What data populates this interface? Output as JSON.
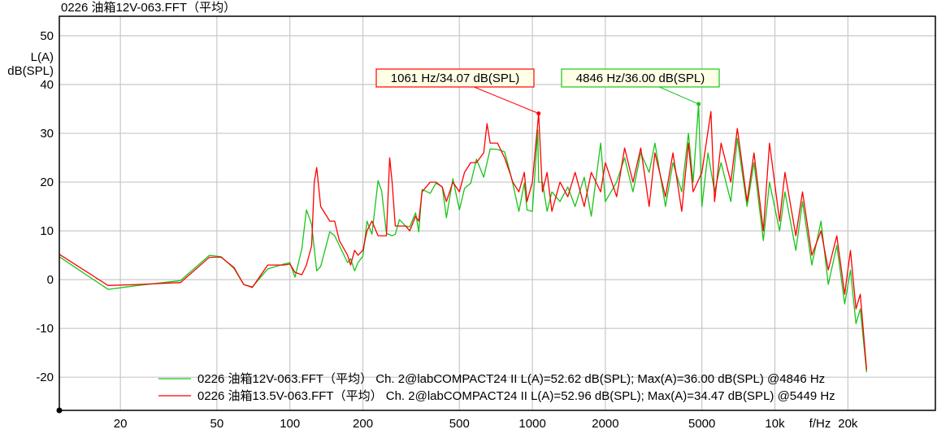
{
  "title": "0226 油箱12V-063.FFT（平均）",
  "chart_data": {
    "type": "line",
    "title": "0226 油箱12V-063.FFT（平均）",
    "ylabel": [
      "L(A)",
      "dB(SPL)"
    ],
    "xlabel": "f/Hz",
    "x_scale": "log",
    "xlim": [
      11.2,
      45900
    ],
    "ylim": [
      -26.8,
      54
    ],
    "grid": true,
    "x_ticks": [
      20,
      50,
      100,
      200,
      500,
      1000,
      2000,
      5000,
      10000,
      20000
    ],
    "x_tick_labels": [
      "20",
      "50",
      "100",
      "200",
      "500",
      "1000",
      "2000",
      "5000",
      "10k",
      "20k"
    ],
    "y_ticks": [
      50,
      40,
      30,
      20,
      10,
      0,
      -10,
      -20
    ],
    "y_tick_labels": [
      "50",
      "40",
      "30",
      "20",
      "10",
      "0",
      "-10",
      "-20"
    ],
    "legend_position": "bottom",
    "series": [
      {
        "name": "0226 油箱12V-063.FFT（平均） Ch. 2@labCOMPACT24 II L(A)=52.62 dB(SPL); Max(A)=36.00 dB(SPL) @4846 Hz",
        "color": "#19c419",
        "points": [
          [
            11.2,
            4.7
          ],
          [
            17.8,
            -2
          ],
          [
            23.6,
            -1.2
          ],
          [
            35.4,
            -0.2
          ],
          [
            46.6,
            5
          ],
          [
            52,
            4.7
          ],
          [
            58.8,
            2.3
          ],
          [
            64.5,
            -1
          ],
          [
            70,
            -1.5
          ],
          [
            81,
            2.2
          ],
          [
            94.7,
            3.2
          ],
          [
            100,
            3.5
          ],
          [
            105,
            0.5
          ],
          [
            112,
            6.3
          ],
          [
            117,
            14.3
          ],
          [
            123,
            11.3
          ],
          [
            129,
            1.8
          ],
          [
            134,
            2.7
          ],
          [
            146,
            9.8
          ],
          [
            153,
            9
          ],
          [
            173,
            3.5
          ],
          [
            178,
            4.3
          ],
          [
            185,
            1.8
          ],
          [
            191,
            3.5
          ],
          [
            200,
            4.8
          ],
          [
            208,
            12
          ],
          [
            218,
            9.3
          ],
          [
            231,
            20.3
          ],
          [
            239,
            18.2
          ],
          [
            250,
            9.5
          ],
          [
            264,
            9
          ],
          [
            272,
            9.3
          ],
          [
            283,
            12.3
          ],
          [
            300,
            11
          ],
          [
            312,
            10.8
          ],
          [
            330,
            13.7
          ],
          [
            340,
            9.8
          ],
          [
            351,
            18.5
          ],
          [
            379,
            17.7
          ],
          [
            400,
            19.8
          ],
          [
            425,
            19
          ],
          [
            442,
            12.7
          ],
          [
            470,
            20.7
          ],
          [
            500,
            14.3
          ],
          [
            525,
            18.7
          ],
          [
            557,
            19.8
          ],
          [
            588,
            24.7
          ],
          [
            630,
            21
          ],
          [
            670,
            26.8
          ],
          [
            718,
            26.7
          ],
          [
            768,
            26.2
          ],
          [
            806,
            22.3
          ],
          [
            830,
            19.7
          ],
          [
            880,
            14
          ],
          [
            926,
            19.8
          ],
          [
            950,
            14.3
          ],
          [
            1000,
            14
          ],
          [
            1053,
            30.7
          ],
          [
            1061,
            20
          ],
          [
            1100,
            20
          ],
          [
            1150,
            14
          ],
          [
            1203,
            18
          ],
          [
            1300,
            16
          ],
          [
            1400,
            19
          ],
          [
            1500,
            15
          ],
          [
            1636,
            21
          ],
          [
            1750,
            13
          ],
          [
            1912,
            28
          ],
          [
            2000,
            16
          ],
          [
            2225,
            20
          ],
          [
            2400,
            25
          ],
          [
            2600,
            18
          ],
          [
            2800,
            26
          ],
          [
            3030,
            22
          ],
          [
            3200,
            28
          ],
          [
            3540,
            15
          ],
          [
            3800,
            24
          ],
          [
            4130,
            18
          ],
          [
            4400,
            30
          ],
          [
            4600,
            20
          ],
          [
            4846,
            36
          ],
          [
            5000,
            15
          ],
          [
            5300,
            26
          ],
          [
            5640,
            18
          ],
          [
            6000,
            24
          ],
          [
            6580,
            16
          ],
          [
            7000,
            29
          ],
          [
            7680,
            15
          ],
          [
            8200,
            24
          ],
          [
            8960,
            8
          ],
          [
            9500,
            20
          ],
          [
            10460,
            10
          ],
          [
            11000,
            18
          ],
          [
            12200,
            6
          ],
          [
            13000,
            16
          ],
          [
            14200,
            3
          ],
          [
            15500,
            12
          ],
          [
            16600,
            -1
          ],
          [
            18000,
            7
          ],
          [
            19400,
            -5
          ],
          [
            20500,
            2
          ],
          [
            21600,
            -9
          ],
          [
            22500,
            -6
          ],
          [
            23900,
            -19
          ]
        ]
      },
      {
        "name": "0226 油箱13.5V-063.FFT（平均） Ch. 2@labCOMPACT24 II L(A)=52.96 dB(SPL); Max(A)=34.47 dB(SPL) @5449 Hz",
        "color": "#ff0000",
        "points": [
          [
            11.2,
            5.2
          ],
          [
            17.8,
            -1.2
          ],
          [
            23.6,
            -1
          ],
          [
            35.4,
            -0.6
          ],
          [
            46.6,
            4.6
          ],
          [
            52,
            4.6
          ],
          [
            58.8,
            2.5
          ],
          [
            64.5,
            -1
          ],
          [
            70,
            -1.6
          ],
          [
            81,
            3
          ],
          [
            94.7,
            3
          ],
          [
            100,
            3.2
          ],
          [
            105,
            1.5
          ],
          [
            112,
            1
          ],
          [
            117,
            3
          ],
          [
            123,
            7
          ],
          [
            126,
            20
          ],
          [
            129,
            23
          ],
          [
            134,
            15
          ],
          [
            146,
            12
          ],
          [
            153,
            12
          ],
          [
            160,
            8
          ],
          [
            173,
            5
          ],
          [
            178,
            3
          ],
          [
            185,
            6
          ],
          [
            191,
            5
          ],
          [
            200,
            6
          ],
          [
            208,
            10
          ],
          [
            218,
            12
          ],
          [
            231,
            9
          ],
          [
            239,
            9
          ],
          [
            250,
            9
          ],
          [
            258,
            25
          ],
          [
            264,
            20
          ],
          [
            272,
            11
          ],
          [
            283,
            11
          ],
          [
            300,
            11
          ],
          [
            312,
            10
          ],
          [
            330,
            13
          ],
          [
            340,
            12
          ],
          [
            351,
            18
          ],
          [
            379,
            20
          ],
          [
            400,
            20
          ],
          [
            425,
            19
          ],
          [
            442,
            16
          ],
          [
            470,
            20
          ],
          [
            500,
            18
          ],
          [
            525,
            22
          ],
          [
            557,
            24
          ],
          [
            588,
            24
          ],
          [
            630,
            26
          ],
          [
            650,
            32
          ],
          [
            670,
            28
          ],
          [
            718,
            28
          ],
          [
            768,
            25
          ],
          [
            806,
            22
          ],
          [
            830,
            20
          ],
          [
            880,
            18
          ],
          [
            926,
            22
          ],
          [
            950,
            16
          ],
          [
            1000,
            20
          ],
          [
            1061,
            34.07
          ],
          [
            1100,
            18
          ],
          [
            1150,
            22
          ],
          [
            1203,
            14
          ],
          [
            1300,
            20
          ],
          [
            1400,
            17
          ],
          [
            1500,
            22
          ],
          [
            1636,
            15
          ],
          [
            1750,
            22
          ],
          [
            1912,
            18
          ],
          [
            2000,
            24
          ],
          [
            2225,
            17
          ],
          [
            2400,
            27
          ],
          [
            2600,
            20
          ],
          [
            2800,
            27
          ],
          [
            3030,
            15
          ],
          [
            3200,
            26
          ],
          [
            3540,
            17
          ],
          [
            3800,
            26
          ],
          [
            4130,
            14
          ],
          [
            4400,
            28
          ],
          [
            4600,
            18
          ],
          [
            5000,
            22
          ],
          [
            5449,
            34.47
          ],
          [
            5640,
            16
          ],
          [
            6000,
            28
          ],
          [
            6580,
            20
          ],
          [
            7000,
            31
          ],
          [
            7680,
            16
          ],
          [
            8200,
            26
          ],
          [
            8960,
            10
          ],
          [
            9500,
            28
          ],
          [
            10460,
            12
          ],
          [
            11000,
            22
          ],
          [
            12200,
            9
          ],
          [
            13000,
            18
          ],
          [
            14200,
            5
          ],
          [
            15500,
            10
          ],
          [
            16600,
            2
          ],
          [
            18000,
            9
          ],
          [
            19400,
            -3
          ],
          [
            20500,
            6
          ],
          [
            21600,
            -6
          ],
          [
            22500,
            -3
          ],
          [
            23900,
            -18.5
          ]
        ]
      }
    ],
    "annotations": [
      {
        "text": "1061 Hz/34.07 dB(SPL)",
        "x": 1061,
        "y": 34.07,
        "series": 1
      },
      {
        "text": "4846 Hz/36.00 dB(SPL)",
        "x": 4846,
        "y": 36.0,
        "series": 0
      }
    ]
  }
}
